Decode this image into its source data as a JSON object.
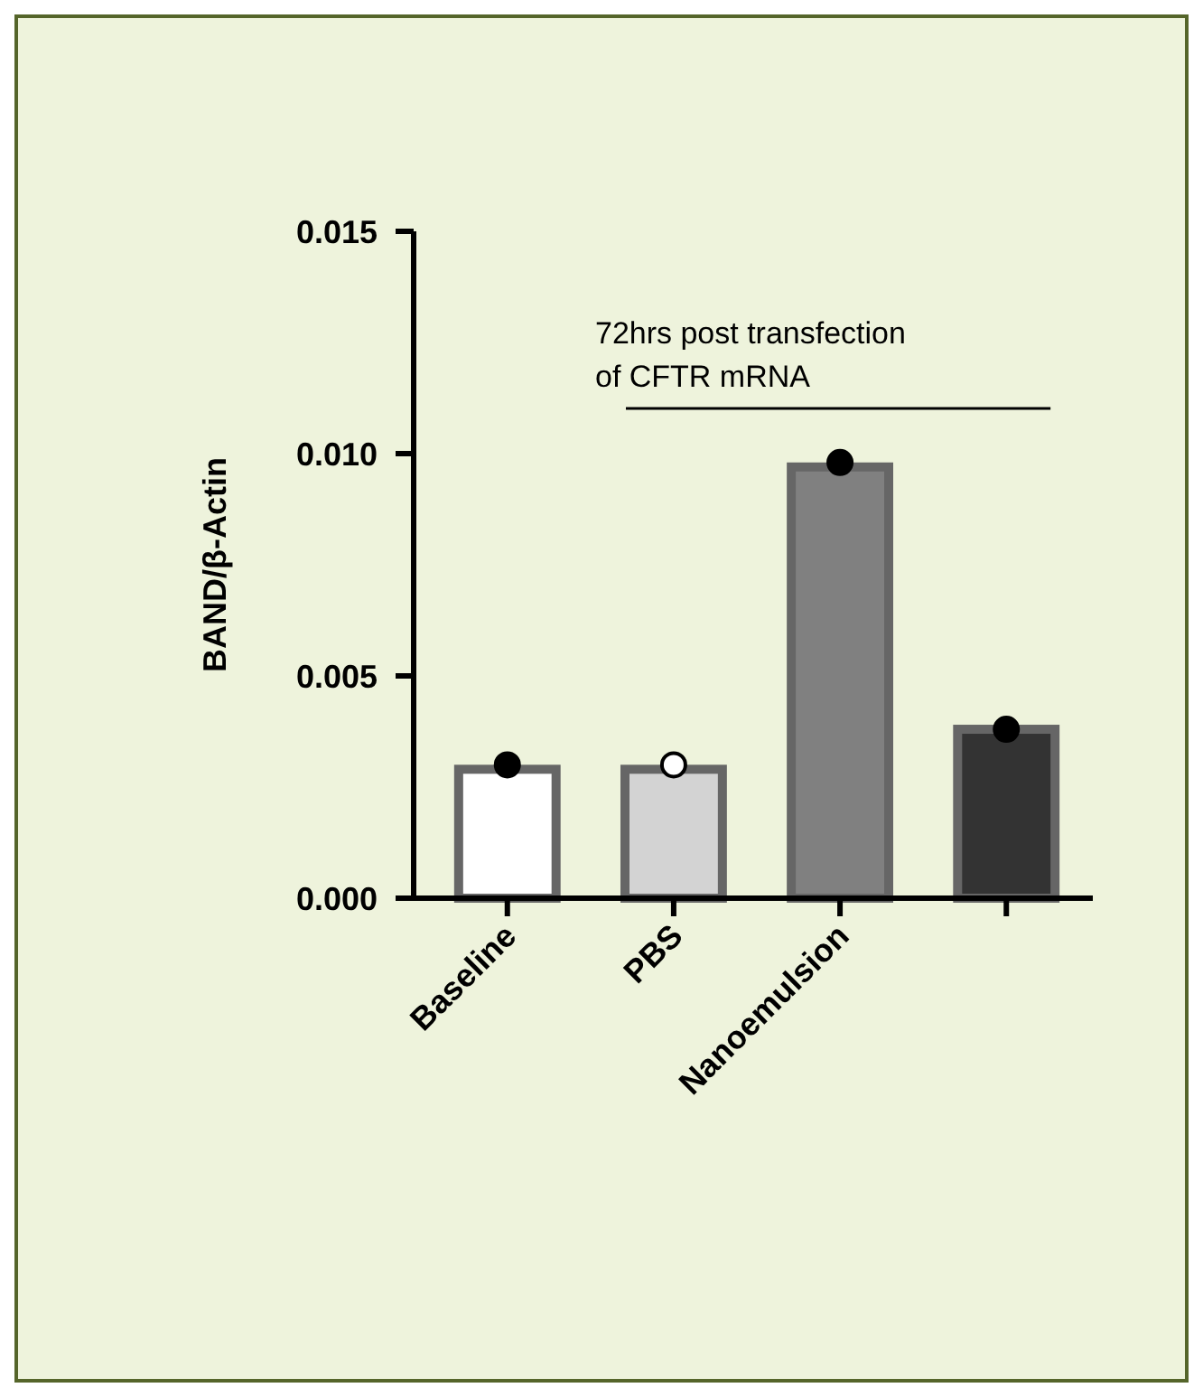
{
  "chart_data": {
    "type": "bar",
    "ylabel": "BAND/β-Actin",
    "categories": [
      "Baseline",
      "PBS",
      "Nanoemulsion",
      null
    ],
    "series": [
      {
        "values": [
          0.0029,
          0.0029,
          0.0097,
          0.0038
        ],
        "colors": [
          "#ffffff",
          "#d3d3d3",
          "#808080",
          "#333333"
        ]
      },
      {
        "type": "scatter",
        "values": [
          0.003,
          0.003,
          0.0098,
          0.0038
        ],
        "colors": [
          "#000000",
          "#ffffff",
          "#000000",
          "#000000"
        ]
      }
    ],
    "ylim": [
      0,
      0.015
    ],
    "yticks": [
      {
        "value": 0,
        "label": "0.000"
      },
      {
        "value": 0.005,
        "label": "0.005"
      },
      {
        "value": 0.01,
        "label": "0.010"
      },
      {
        "value": 0.015,
        "label": "0.015"
      }
    ],
    "grid": false,
    "marker": "circle",
    "annotations": [
      "72hrs post transfection\nof CFTR mRNA"
    ]
  }
}
